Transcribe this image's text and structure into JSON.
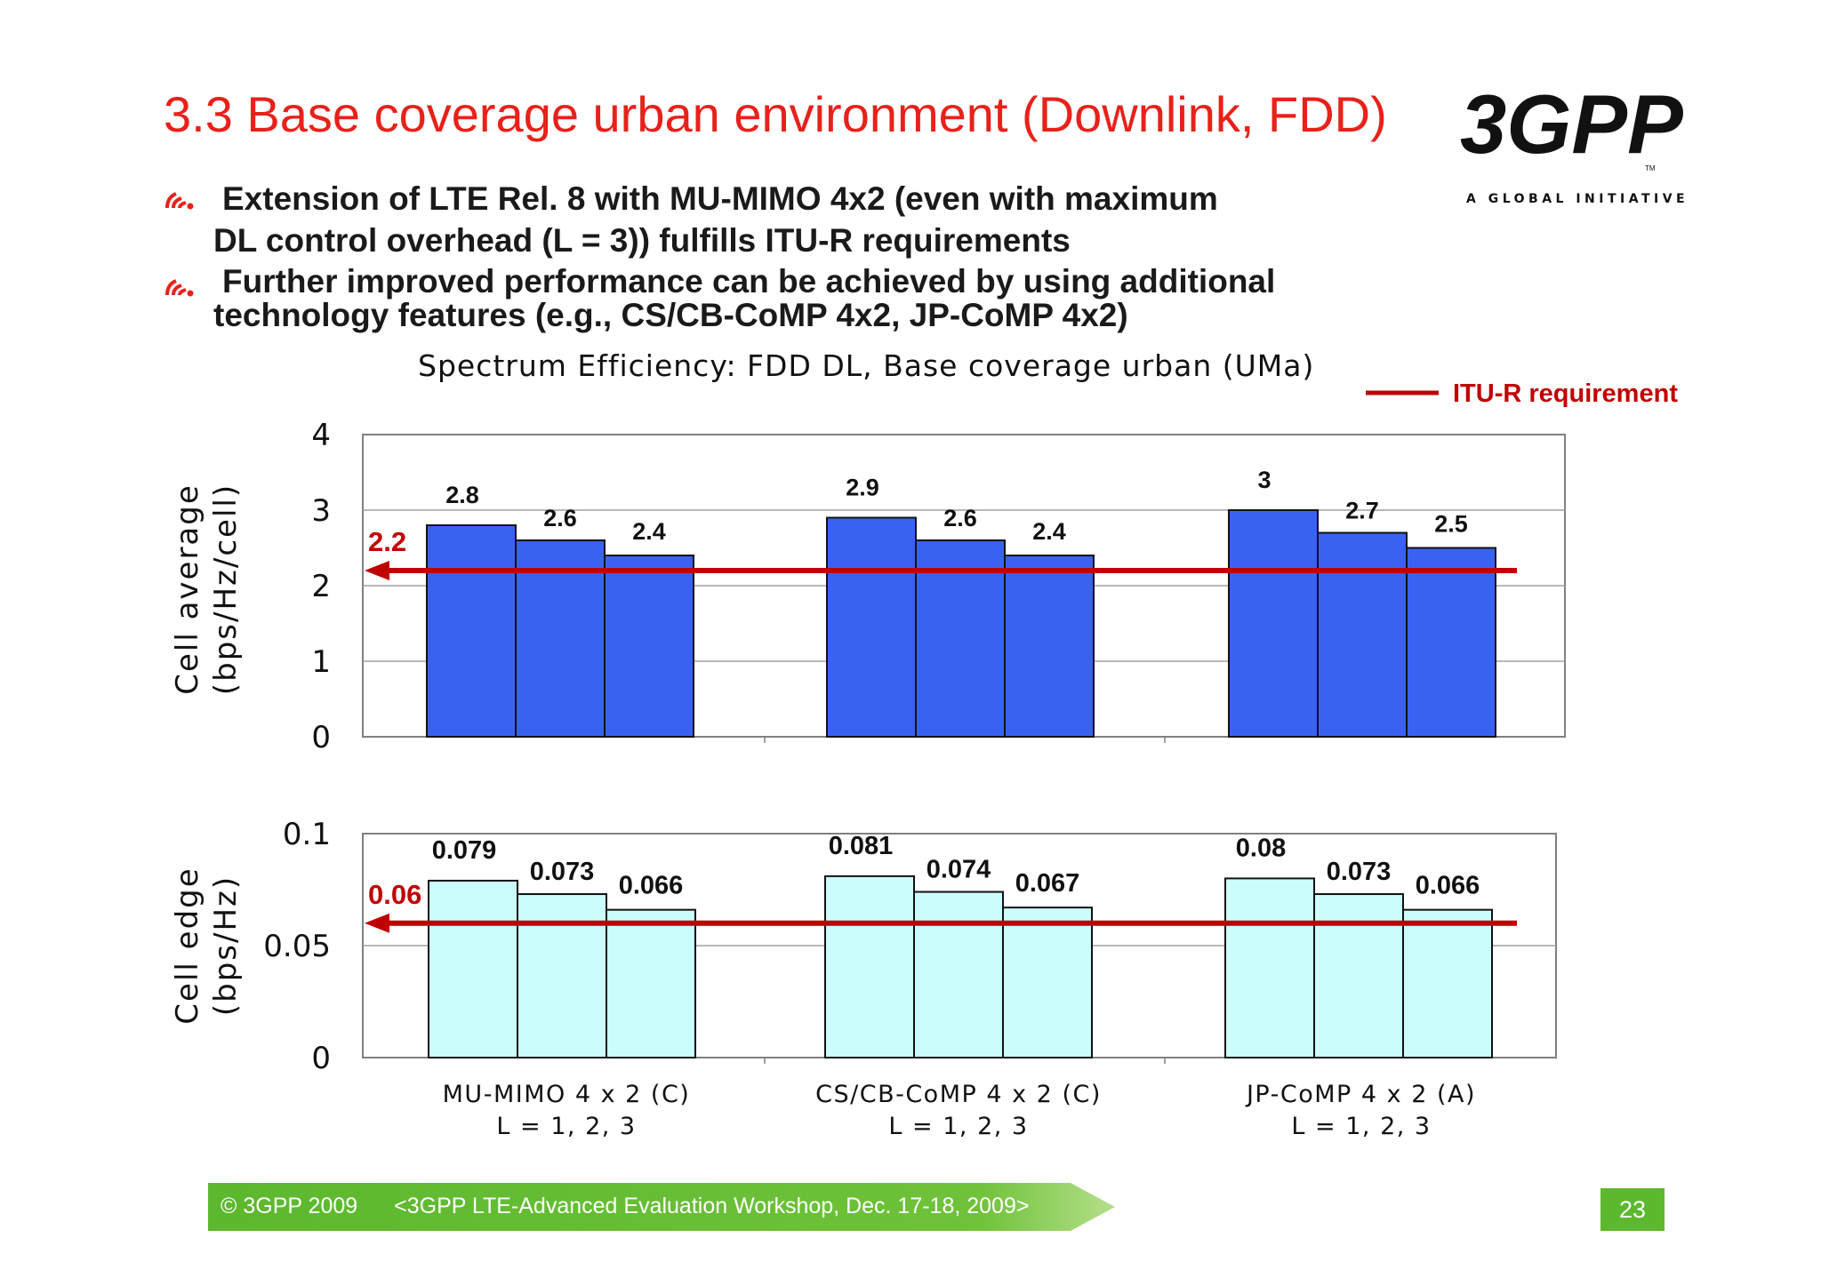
{
  "slide": {
    "title": "3.3 Base coverage urban environment (Downlink, FDD)",
    "logo": {
      "text": "3GPP",
      "tm": "TM",
      "tagline": "A GLOBAL INITIATIVE"
    },
    "bullets": [
      {
        "lines": [
          "Extension of LTE Rel. 8 with MU-MIMO 4x2 (even with maximum",
          "DL control overhead (L = 3)) fulfills ITU-R requirements"
        ]
      },
      {
        "lines": [
          "Further improved performance can be achieved by using additional",
          "technology features  (e.g., CS/CB-CoMP 4x2, JP-CoMP 4x2)"
        ]
      }
    ],
    "footer": {
      "copyright": "© 3GPP 2009",
      "event": "<3GPP LTE-Advanced Evaluation Workshop, Dec. 17-18, 2009>",
      "page": "23"
    },
    "colors": {
      "title": "#e8211a",
      "requirement": "#c00000",
      "avg_bar": "#3a62f2",
      "edge_bar": "#ccfdfd",
      "footer": "#5cb82e"
    }
  },
  "chart_data": [
    {
      "type": "bar",
      "title": "Spectrum Efficiency: FDD DL, Base coverage urban (UMa)",
      "ylabel": [
        "Cell average",
        "(bps/Hz/cell)"
      ],
      "ylim": [
        0,
        4
      ],
      "yticks": [
        "4",
        "3",
        "2",
        "1",
        "0"
      ],
      "ytick_values": [
        4,
        3,
        2,
        1,
        0
      ],
      "categories": [
        [
          "MU-MIMO 4 x 2 (C)",
          "L = 1, 2, 3"
        ],
        [
          "CS/CB-CoMP 4 x 2 (C)",
          "L = 1, 2, 3"
        ],
        [
          "JP-CoMP 4 x 2 (A)",
          "L = 1, 2, 3"
        ]
      ],
      "values": [
        [
          2.8,
          2.6,
          2.4
        ],
        [
          2.9,
          2.6,
          2.4
        ],
        [
          3,
          2.7,
          2.5
        ]
      ],
      "value_labels": [
        [
          "2.8",
          "2.6",
          "2.4"
        ],
        [
          "2.9",
          "2.6",
          "2.4"
        ],
        [
          "3",
          "2.7",
          "2.5"
        ]
      ],
      "requirement": {
        "value": 2.2,
        "label": "2.2"
      },
      "bar_color": "#3a62f2",
      "grid": true
    },
    {
      "type": "bar",
      "ylabel": [
        "Cell edge",
        "(bps/Hz)"
      ],
      "ylim": [
        0,
        0.1
      ],
      "yticks": [
        "0.1",
        "0.05",
        "0"
      ],
      "ytick_values": [
        0.1,
        0.05,
        0
      ],
      "categories": [
        [
          "MU-MIMO 4 x 2 (C)",
          "L = 1, 2, 3"
        ],
        [
          "CS/CB-CoMP 4 x 2 (C)",
          "L = 1, 2, 3"
        ],
        [
          "JP-CoMP 4 x 2 (A)",
          "L = 1, 2, 3"
        ]
      ],
      "values": [
        [
          0.079,
          0.073,
          0.066
        ],
        [
          0.081,
          0.074,
          0.067
        ],
        [
          0.08,
          0.073,
          0.066
        ]
      ],
      "value_labels": [
        [
          "0.079",
          "0.073",
          "0.066"
        ],
        [
          "0.081",
          "0.074",
          "0.067"
        ],
        [
          "0.08",
          "0.073",
          "0.066"
        ]
      ],
      "requirement": {
        "value": 0.06,
        "label": "0.06"
      },
      "bar_color": "#ccfdfd",
      "grid": true
    }
  ],
  "legend": {
    "label": "ITU-R requirement",
    "placement": "top-right",
    "color": "#c00000"
  }
}
